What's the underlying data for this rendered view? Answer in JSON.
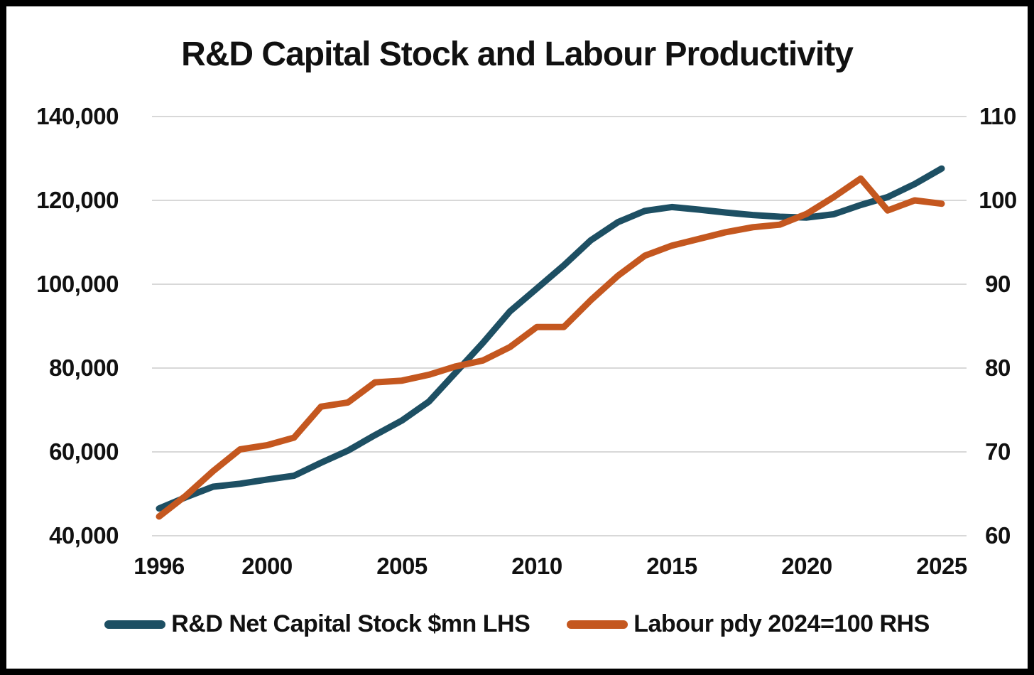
{
  "chart_data": {
    "type": "line",
    "title": "R&D Capital Stock and Labour Productivity",
    "x": [
      1996,
      1997,
      1998,
      1999,
      2000,
      2001,
      2002,
      2003,
      2004,
      2005,
      2006,
      2007,
      2008,
      2009,
      2010,
      2011,
      2012,
      2013,
      2014,
      2015,
      2016,
      2017,
      2018,
      2019,
      2020,
      2021,
      2022,
      2023,
      2024,
      2025
    ],
    "series": [
      {
        "name": "R&D Net Capital Stock $mn LHS",
        "axis": "left",
        "color": "#1d4f63",
        "values": [
          46500,
          49200,
          51700,
          52400,
          53400,
          54300,
          57400,
          60300,
          64000,
          67500,
          72000,
          79000,
          86000,
          93500,
          99000,
          104500,
          110500,
          114800,
          117500,
          118400,
          117800,
          117100,
          116500,
          116100,
          115900,
          116700,
          118900,
          120800,
          123900,
          127600
        ]
      },
      {
        "name": "Labour pdy 2024=100 RHS",
        "axis": "right",
        "color": "#c4571f",
        "values": [
          62.3,
          64.8,
          67.7,
          70.3,
          70.8,
          71.7,
          75.4,
          75.9,
          78.3,
          78.5,
          79.2,
          80.2,
          80.9,
          82.5,
          84.9,
          84.9,
          88.1,
          91.0,
          93.4,
          94.6,
          95.4,
          96.2,
          96.8,
          97.1,
          98.4,
          100.4,
          102.6,
          98.8,
          100.0,
          99.6
        ]
      }
    ],
    "y_left": {
      "min": 40000,
      "max": 140000,
      "tick_step": 20000,
      "tick_labels": [
        "40,000",
        "60,000",
        "80,000",
        "100,000",
        "120,000",
        "140,000"
      ]
    },
    "y_right": {
      "min": 60,
      "max": 110,
      "tick_step": 10,
      "tick_labels": [
        "60",
        "70",
        "80",
        "90",
        "100",
        "110"
      ]
    },
    "x_ticks": [
      1996,
      2000,
      2005,
      2010,
      2015,
      2020,
      2025
    ],
    "grid": "horizontal",
    "gridline_color": "#d8d8d8",
    "legend_position": "bottom",
    "background": "#ffffff",
    "frame_color": "#000000"
  }
}
